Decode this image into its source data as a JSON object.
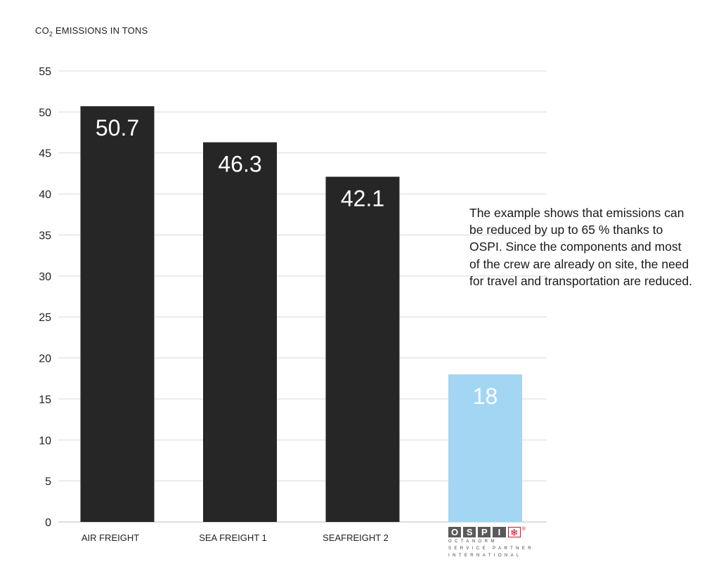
{
  "chart_data": {
    "type": "bar",
    "ylabel_main": "CO",
    "ylabel_sub": "2",
    "ylabel_rest": " EMISSIONS IN TONS",
    "ylim": [
      0,
      55
    ],
    "yticks": [
      0,
      5,
      10,
      15,
      20,
      25,
      30,
      35,
      40,
      45,
      50,
      55
    ],
    "grid": true,
    "categories": [
      "AIR FREIGHT",
      "SEA FREIGHT 1",
      "SEAFREIGHT 2",
      ""
    ],
    "values": [
      50.7,
      46.3,
      42.1,
      18
    ],
    "value_labels": [
      "50.7",
      "46.3",
      "42.1",
      "18"
    ],
    "colors": [
      "#262626",
      "#262626",
      "#262626",
      "#a3d6f3"
    ]
  },
  "note": "The example shows that emissions can be reduced by up to 65 % thanks to OSPI. Since the components and most of the crew are already on site, the need for travel and transportation are reduced.",
  "logo": {
    "letters": [
      "O",
      "S",
      "P",
      "I"
    ],
    "line1": "OCTANORM",
    "line2": "SERVICE PARTNER",
    "line3": "INTERNATIONAL",
    "mark_icon": "snowflake-icon",
    "registered": "®"
  }
}
